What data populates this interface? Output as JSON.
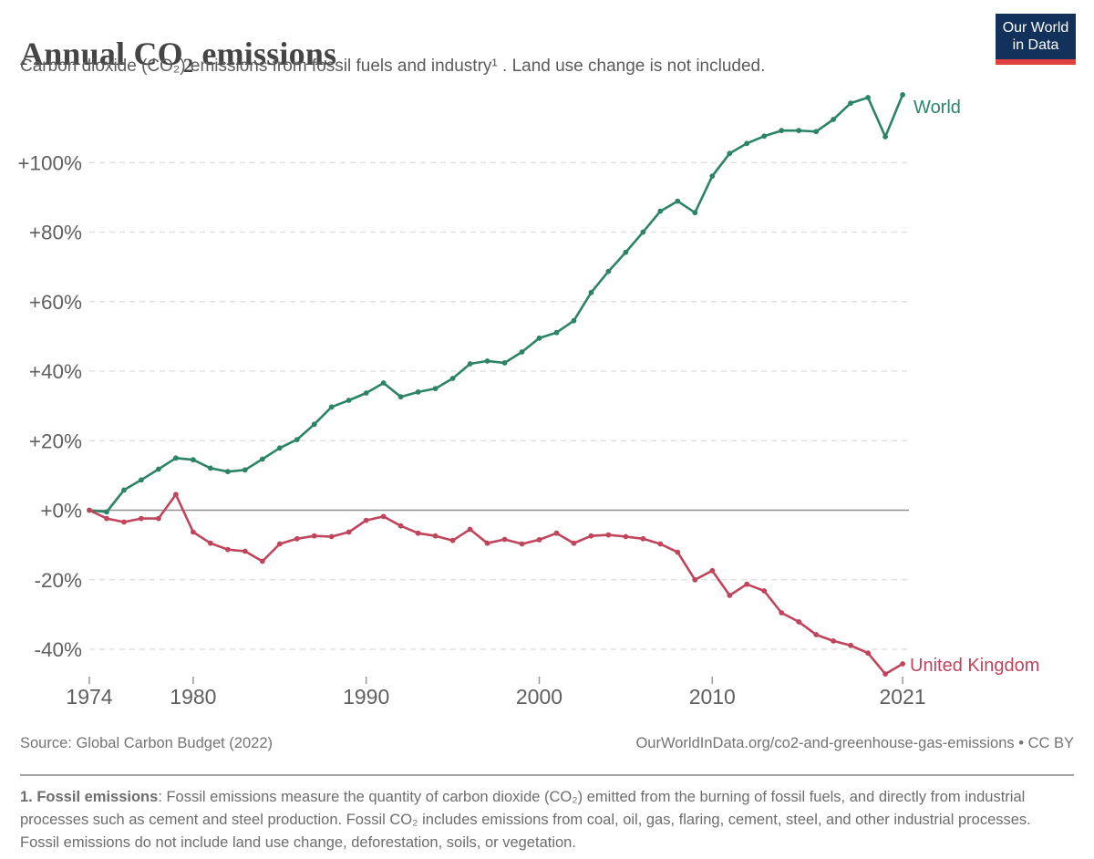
{
  "header": {
    "title_prefix": "Annual CO",
    "title_sub": "2",
    "title_suffix": " emissions",
    "subtitle": "Carbon dioxide (CO₂) emissions from fossil fuels and industry¹ . Land use change is not included."
  },
  "logo": {
    "line1": "Our World",
    "line2": "in Data",
    "bg_color": "#12325c",
    "bar_color": "#e0403f"
  },
  "chart_data": {
    "type": "line",
    "title": "Annual CO₂ emissions",
    "xlabel": "",
    "ylabel": "",
    "xlim": [
      1974,
      2021
    ],
    "ylim": [
      -50,
      125
    ],
    "grid": "horizontal-dashed",
    "legend_position": "line-end-labels",
    "x_ticks": [
      1974,
      1980,
      1990,
      2000,
      2010,
      2021
    ],
    "y_ticks": [
      {
        "value": 100,
        "label": "+100%"
      },
      {
        "value": 80,
        "label": "+80%"
      },
      {
        "value": 60,
        "label": "+60%"
      },
      {
        "value": 40,
        "label": "+40%"
      },
      {
        "value": 20,
        "label": "+20%"
      },
      {
        "value": 0,
        "label": "+0%"
      },
      {
        "value": -20,
        "label": "-20%"
      },
      {
        "value": -40,
        "label": "-40%"
      }
    ],
    "x_years": [
      1974,
      1975,
      1976,
      1977,
      1978,
      1979,
      1980,
      1981,
      1982,
      1983,
      1984,
      1985,
      1986,
      1987,
      1988,
      1989,
      1990,
      1991,
      1992,
      1993,
      1994,
      1995,
      1996,
      1997,
      1998,
      1999,
      2000,
      2001,
      2002,
      2003,
      2004,
      2005,
      2006,
      2007,
      2008,
      2009,
      2010,
      2011,
      2012,
      2013,
      2014,
      2015,
      2016,
      2017,
      2018,
      2019,
      2020,
      2021
    ],
    "series": [
      {
        "name": "World",
        "color": "#2c8465",
        "values": [
          0,
          -0.5,
          5.8,
          8.7,
          11.8,
          15.0,
          14.5,
          12.1,
          11.1,
          11.6,
          14.7,
          17.9,
          20.3,
          24.7,
          29.7,
          31.6,
          33.7,
          36.6,
          32.6,
          34.0,
          35.0,
          37.9,
          42.1,
          42.9,
          42.4,
          45.5,
          49.5,
          51.1,
          54.5,
          62.6,
          68.7,
          74.2,
          80.0,
          86.0,
          88.9,
          85.6,
          96.1,
          102.6,
          105.5,
          107.6,
          109.2,
          109.2,
          108.9,
          112.4,
          117.1,
          118.7,
          107.4,
          119.5
        ]
      },
      {
        "name": "United Kingdom",
        "color": "#c0445c",
        "values": [
          0,
          -2.4,
          -3.4,
          -2.4,
          -2.4,
          4.5,
          -6.3,
          -9.5,
          -11.3,
          -11.8,
          -14.7,
          -9.7,
          -8.2,
          -7.4,
          -7.6,
          -6.3,
          -2.9,
          -1.8,
          -4.5,
          -6.6,
          -7.4,
          -8.7,
          -5.5,
          -9.5,
          -8.4,
          -9.7,
          -8.5,
          -6.6,
          -9.5,
          -7.4,
          -7.1,
          -7.6,
          -8.2,
          -9.7,
          -12.1,
          -20.0,
          -17.4,
          -24.5,
          -21.3,
          -23.2,
          -29.5,
          -32.1,
          -35.8,
          -37.6,
          -38.9,
          -41.1,
          -47.1,
          -44.2
        ]
      }
    ]
  },
  "footer": {
    "source": "Source: Global Carbon Budget (2022)",
    "license": "OurWorldInData.org/co2-and-greenhouse-gas-emissions • CC BY"
  },
  "footnote": {
    "lead": "1. Fossil emissions",
    "body": ": Fossil emissions measure the quantity of carbon dioxide (CO₂) emitted from the burning of fossil fuels, and directly from industrial processes such as cement and steel production. Fossil CO₂ includes emissions from coal, oil, gas, flaring, cement, steel, and other industrial processes. Fossil emissions do not include land use change, deforestation, soils, or vegetation."
  }
}
